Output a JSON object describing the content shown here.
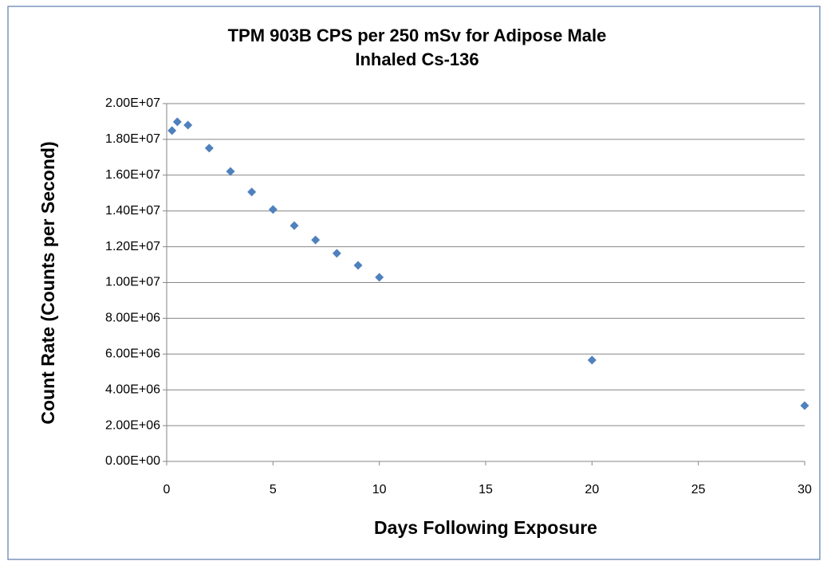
{
  "chart_data": {
    "type": "scatter",
    "title": [
      "TPM 903B CPS per 250 mSv for Adipose Male",
      "Inhaled Cs-136"
    ],
    "x_label": "Days Following Exposure",
    "y_label": "Count Rate (Counts per Second)",
    "series": [
      {
        "color": "#4f81bd",
        "x": [
          0.25,
          0.5,
          1,
          2,
          3,
          4,
          5,
          6,
          7,
          8,
          9,
          10,
          20,
          30
        ],
        "values": [
          18490000,
          18980000,
          18800000,
          17510000,
          16210000,
          15060000,
          14080000,
          13180000,
          12380000,
          11630000,
          10960000,
          10290000,
          5660000,
          3120000
        ]
      }
    ],
    "xlim": [
      0,
      30
    ],
    "xticks": [
      0,
      5,
      10,
      15,
      20,
      25,
      30
    ],
    "ylim": [
      0,
      20000000
    ],
    "yticks": [
      {
        "value": 0,
        "label": "0.00E+00"
      },
      {
        "value": 2000000,
        "label": "2.00E+06"
      },
      {
        "value": 4000000,
        "label": "4.00E+06"
      },
      {
        "value": 6000000,
        "label": "6.00E+06"
      },
      {
        "value": 8000000,
        "label": "8.00E+06"
      },
      {
        "value": 10000000,
        "label": "1.00E+07"
      },
      {
        "value": 12000000,
        "label": "1.20E+07"
      },
      {
        "value": 14000000,
        "label": "1.40E+07"
      },
      {
        "value": 16000000,
        "label": "1.60E+07"
      },
      {
        "value": 18000000,
        "label": "1.80E+07"
      },
      {
        "value": 20000000,
        "label": "2.00E+07"
      }
    ],
    "grid": true
  }
}
